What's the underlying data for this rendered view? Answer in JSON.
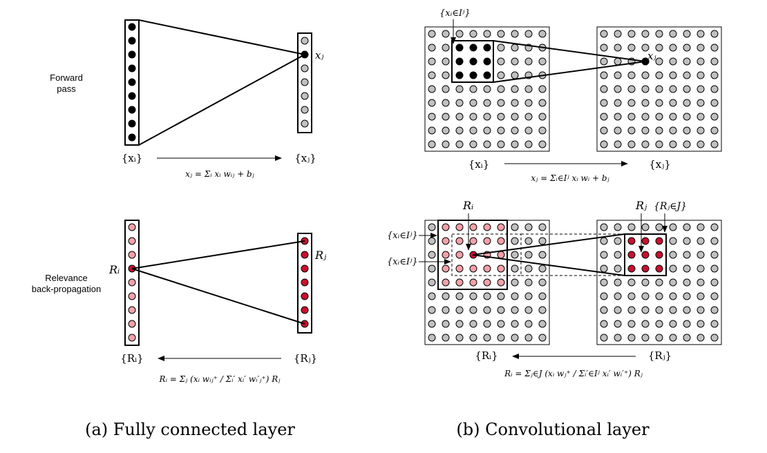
{
  "fully_connected": {
    "forward_label": [
      "Forward",
      "pass"
    ],
    "relevance_label": [
      "Relevance",
      "back-propagation"
    ],
    "input_set": "{xᵢ}",
    "output_set": "{xⱼ}",
    "neuron_xj": "xⱼ",
    "forward_formula": "xⱼ = Σᵢ xᵢ wᵢⱼ + bⱼ",
    "relevance_in_set": "{Rᵢ}",
    "relevance_out_set": "{Rⱼ}",
    "neuron_ri": "Rᵢ",
    "neuron_rj": "Rⱼ",
    "relevance_formula": "Rᵢ = Σⱼ (xᵢ wᵢⱼ⁺ / Σᵢ′ xᵢ′ wᵢ′ⱼ⁺) Rⱼ",
    "caption": "(a) Fully connected layer"
  },
  "convolutional": {
    "receptive_top": "{xᵢ∈Iʲ}",
    "neuron_xj": "xⱼ",
    "input_set": "{xᵢ}",
    "output_set": "{xⱼ}",
    "forward_formula": "xⱼ = Σᵢ∈Iʲ xᵢ wᵢ + bⱼ",
    "neuron_ri": "Rᵢ",
    "neuron_rj": "Rⱼ",
    "rj_set": "{Rⱼ∈J}",
    "receptive_a": "{xᵢ∈Iʲ}",
    "receptive_b": "{xᵢ∈Iʲ}",
    "relevance_in_set": "{Rᵢ}",
    "relevance_out_set": "{Rⱼ}",
    "relevance_formula": "Rᵢ = Σⱼ∈J (xᵢ wⱼ⁺ / Σᵢ′∈Iʲ xᵢ′ wᵢ′⁺) Rⱼ",
    "caption": "(b) Convolutional layer"
  },
  "colors": {
    "active": "#000000",
    "inactive": "#c0c0c0",
    "relevance_dark": "#c8102e",
    "relevance_light": "#f4a0a8",
    "frame": "#000000"
  }
}
